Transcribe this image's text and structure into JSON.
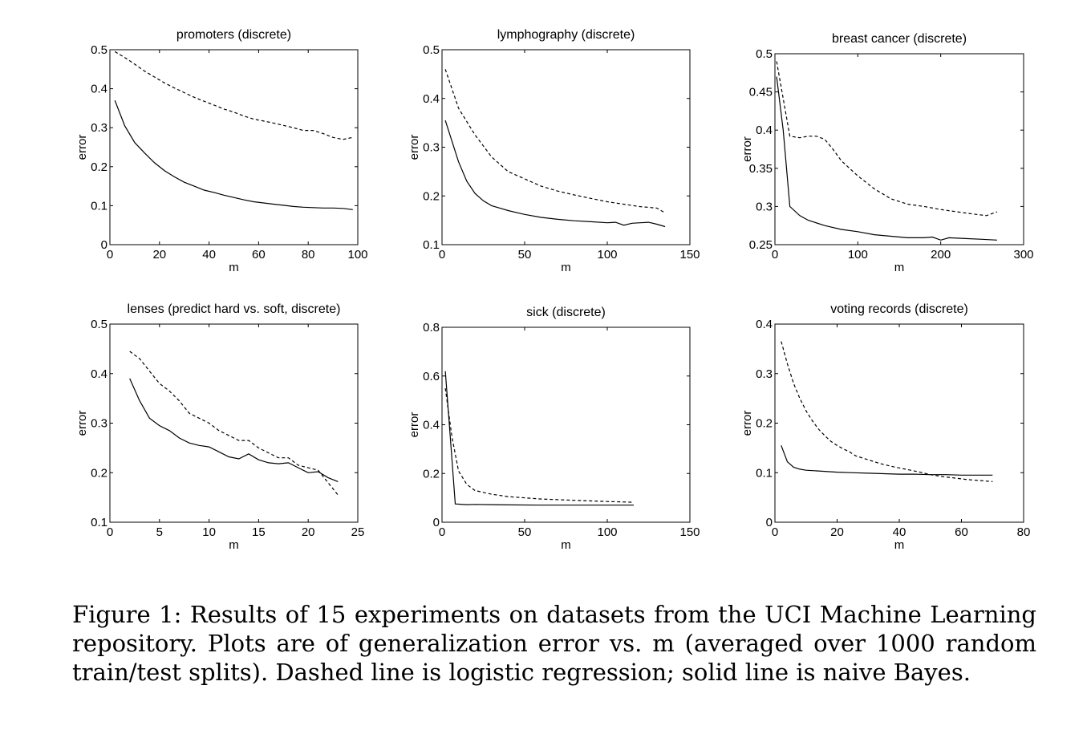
{
  "caption": "Figure 1: Results of 15 experiments on datasets from the UCI Machine Learning repository. Plots are of generalization error vs. m (averaged over 1000 random train/test splits). Dashed line is logistic regression; solid line is naive Bayes.",
  "chart_data": [
    {
      "type": "line",
      "title": "promoters (discrete)",
      "xlabel": "m",
      "ylabel": "error",
      "xlim": [
        0,
        100
      ],
      "ylim": [
        0,
        0.5
      ],
      "xticks": [
        "0",
        "20",
        "40",
        "60",
        "80",
        "100"
      ],
      "yticks": [
        "0",
        "0.1",
        "0.2",
        "0.3",
        "0.4",
        "0.5"
      ],
      "series": [
        {
          "style": "dashed",
          "x": [
            2,
            6,
            10,
            14,
            18,
            22,
            26,
            30,
            34,
            38,
            42,
            46,
            50,
            54,
            58,
            62,
            66,
            70,
            74,
            78,
            82,
            86,
            90,
            94,
            98
          ],
          "y": [
            0.495,
            0.48,
            0.463,
            0.445,
            0.43,
            0.415,
            0.402,
            0.39,
            0.378,
            0.368,
            0.358,
            0.348,
            0.34,
            0.33,
            0.322,
            0.317,
            0.312,
            0.306,
            0.3,
            0.293,
            0.293,
            0.285,
            0.275,
            0.27,
            0.275
          ]
        },
        {
          "style": "solid",
          "x": [
            2,
            6,
            10,
            14,
            18,
            22,
            26,
            30,
            34,
            38,
            42,
            46,
            50,
            54,
            58,
            62,
            66,
            70,
            74,
            78,
            82,
            86,
            90,
            94,
            98
          ],
          "y": [
            0.37,
            0.305,
            0.262,
            0.235,
            0.21,
            0.19,
            0.174,
            0.16,
            0.15,
            0.14,
            0.134,
            0.127,
            0.121,
            0.115,
            0.11,
            0.107,
            0.104,
            0.101,
            0.098,
            0.096,
            0.095,
            0.094,
            0.094,
            0.093,
            0.09
          ]
        }
      ]
    },
    {
      "type": "line",
      "title": "lymphography (discrete)",
      "xlabel": "m",
      "ylabel": "error",
      "xlim": [
        0,
        150
      ],
      "ylim": [
        0.1,
        0.5
      ],
      "xticks": [
        "0",
        "50",
        "100",
        "150"
      ],
      "yticks": [
        "0.1",
        "0.2",
        "0.3",
        "0.4",
        "0.5"
      ],
      "series": [
        {
          "style": "dashed",
          "x": [
            2,
            10,
            20,
            30,
            40,
            50,
            60,
            70,
            80,
            90,
            100,
            110,
            120,
            130,
            135
          ],
          "y": [
            0.46,
            0.38,
            0.325,
            0.28,
            0.25,
            0.235,
            0.22,
            0.21,
            0.202,
            0.195,
            0.188,
            0.183,
            0.178,
            0.175,
            0.165
          ]
        },
        {
          "style": "solid",
          "x": [
            2,
            10,
            15,
            20,
            25,
            30,
            35,
            40,
            50,
            60,
            70,
            80,
            90,
            100,
            105,
            110,
            115,
            120,
            125,
            130,
            135
          ],
          "y": [
            0.355,
            0.27,
            0.23,
            0.205,
            0.19,
            0.18,
            0.175,
            0.17,
            0.162,
            0.156,
            0.152,
            0.149,
            0.147,
            0.145,
            0.146,
            0.14,
            0.144,
            0.145,
            0.146,
            0.142,
            0.137
          ]
        }
      ]
    },
    {
      "type": "line",
      "title": "breast cancer (discrete)",
      "xlabel": "m",
      "ylabel": "error",
      "xlim": [
        0,
        300
      ],
      "ylim": [
        0.25,
        0.5
      ],
      "xticks": [
        "0",
        "100",
        "200",
        "300"
      ],
      "yticks": [
        "0.25",
        "0.3",
        "0.35",
        "0.4",
        "0.45",
        "0.5"
      ],
      "series": [
        {
          "style": "dashed",
          "x": [
            2,
            18,
            30,
            40,
            50,
            60,
            70,
            80,
            100,
            120,
            140,
            160,
            180,
            200,
            220,
            240,
            255,
            268
          ],
          "y": [
            0.49,
            0.392,
            0.39,
            0.392,
            0.392,
            0.388,
            0.375,
            0.36,
            0.34,
            0.323,
            0.31,
            0.303,
            0.3,
            0.296,
            0.293,
            0.29,
            0.288,
            0.293
          ]
        },
        {
          "style": "solid",
          "x": [
            2,
            10,
            18,
            30,
            40,
            60,
            80,
            100,
            120,
            140,
            160,
            180,
            190,
            200,
            210,
            230,
            250,
            268
          ],
          "y": [
            0.47,
            0.4,
            0.3,
            0.288,
            0.282,
            0.275,
            0.27,
            0.267,
            0.263,
            0.261,
            0.259,
            0.259,
            0.26,
            0.256,
            0.259,
            0.258,
            0.257,
            0.256
          ]
        }
      ]
    },
    {
      "type": "line",
      "title": "lenses (predict hard vs. soft, discrete)",
      "xlabel": "m",
      "ylabel": "error",
      "xlim": [
        0,
        25
      ],
      "ylim": [
        0.1,
        0.5
      ],
      "xticks": [
        "0",
        "5",
        "10",
        "15",
        "20",
        "25"
      ],
      "yticks": [
        "0.1",
        "0.2",
        "0.3",
        "0.4",
        "0.5"
      ],
      "series": [
        {
          "style": "dashed",
          "x": [
            2,
            3,
            4,
            5,
            6,
            7,
            8,
            9,
            10,
            11,
            12,
            13,
            14,
            15,
            16,
            17,
            18,
            19,
            20,
            21,
            22,
            23
          ],
          "y": [
            0.445,
            0.43,
            0.405,
            0.38,
            0.365,
            0.345,
            0.32,
            0.31,
            0.3,
            0.285,
            0.275,
            0.265,
            0.265,
            0.25,
            0.24,
            0.23,
            0.23,
            0.215,
            0.21,
            0.205,
            0.18,
            0.155
          ]
        },
        {
          "style": "solid",
          "x": [
            2,
            3,
            4,
            5,
            6,
            7,
            8,
            9,
            10,
            11,
            12,
            13,
            14,
            15,
            16,
            17,
            18,
            19,
            20,
            21,
            22,
            23
          ],
          "y": [
            0.39,
            0.345,
            0.31,
            0.295,
            0.285,
            0.27,
            0.26,
            0.255,
            0.252,
            0.242,
            0.232,
            0.228,
            0.238,
            0.226,
            0.22,
            0.218,
            0.22,
            0.21,
            0.2,
            0.202,
            0.19,
            0.182
          ]
        }
      ]
    },
    {
      "type": "line",
      "title": "sick (discrete)",
      "xlabel": "m",
      "ylabel": "error",
      "xlim": [
        0,
        150
      ],
      "ylim": [
        0,
        0.8
      ],
      "xticks": [
        "0",
        "50",
        "100",
        "150"
      ],
      "yticks": [
        "0",
        "0.2",
        "0.4",
        "0.6",
        "0.8"
      ],
      "series": [
        {
          "style": "dashed",
          "x": [
            2,
            6,
            10,
            15,
            20,
            30,
            40,
            60,
            80,
            100,
            116
          ],
          "y": [
            0.55,
            0.35,
            0.21,
            0.155,
            0.13,
            0.115,
            0.105,
            0.095,
            0.09,
            0.085,
            0.082
          ]
        },
        {
          "style": "solid",
          "x": [
            2,
            5,
            8,
            15,
            20,
            30,
            40,
            60,
            80,
            100,
            116
          ],
          "y": [
            0.62,
            0.35,
            0.075,
            0.072,
            0.073,
            0.072,
            0.071,
            0.07,
            0.07,
            0.07,
            0.07
          ]
        }
      ]
    },
    {
      "type": "line",
      "title": "voting records (discrete)",
      "xlabel": "m",
      "ylabel": "error",
      "xlim": [
        0,
        80
      ],
      "ylim": [
        0,
        0.4
      ],
      "xticks": [
        "0",
        "20",
        "40",
        "60",
        "80"
      ],
      "yticks": [
        "0",
        "0.1",
        "0.2",
        "0.3",
        "0.4"
      ],
      "series": [
        {
          "style": "dashed",
          "x": [
            2,
            4,
            6,
            8,
            10,
            12,
            14,
            16,
            18,
            20,
            22,
            24,
            26,
            30,
            34,
            38,
            42,
            46,
            50,
            54,
            58,
            62,
            66,
            70
          ],
          "y": [
            0.365,
            0.32,
            0.28,
            0.25,
            0.225,
            0.205,
            0.188,
            0.175,
            0.163,
            0.155,
            0.148,
            0.142,
            0.134,
            0.126,
            0.118,
            0.112,
            0.107,
            0.102,
            0.096,
            0.092,
            0.089,
            0.086,
            0.084,
            0.082
          ]
        },
        {
          "style": "solid",
          "x": [
            2,
            4,
            6,
            8,
            10,
            15,
            20,
            25,
            30,
            35,
            40,
            45,
            50,
            55,
            60,
            65,
            70
          ],
          "y": [
            0.155,
            0.122,
            0.111,
            0.107,
            0.105,
            0.103,
            0.101,
            0.1,
            0.099,
            0.098,
            0.097,
            0.097,
            0.096,
            0.096,
            0.095,
            0.095,
            0.095
          ]
        }
      ]
    }
  ]
}
